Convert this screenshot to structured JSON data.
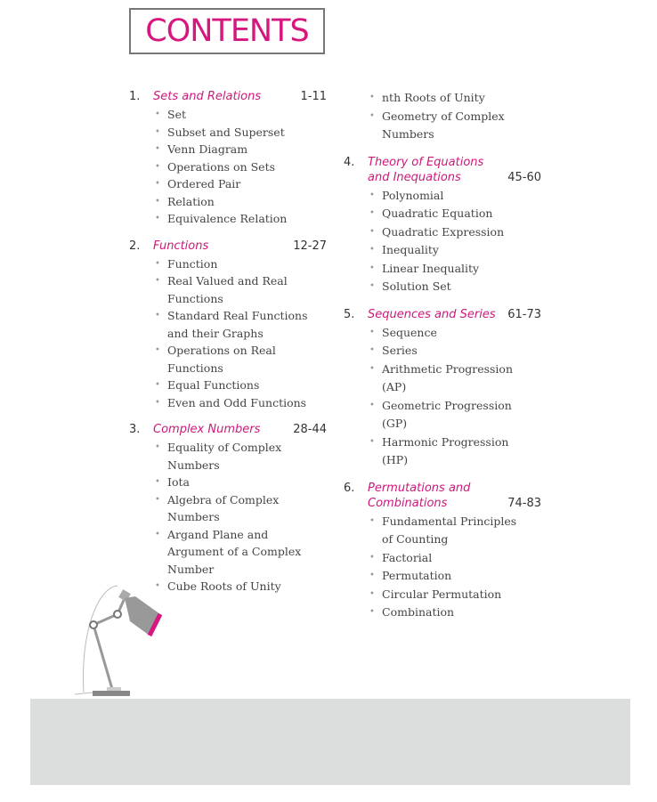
{
  "title": "CONTENTS",
  "accent_color": "#d6177f",
  "sections": [
    {
      "num": "1.",
      "title": "Sets and Relations",
      "pages": "1-11",
      "items": [
        "Set",
        "Subset and Superset",
        "Venn Diagram",
        "Operations on Sets",
        "Ordered Pair",
        "Relation",
        "Equivalence Relation"
      ]
    },
    {
      "num": "2.",
      "title": "Functions",
      "pages": "12-27",
      "items": [
        "Function",
        "Real Valued and Real Functions",
        "Standard Real Functions and their Graphs",
        "Operations on Real Functions",
        "Equal Functions",
        "Even and Odd Functions"
      ]
    },
    {
      "num": "3.",
      "title": "Complex Numbers",
      "pages": "28-44",
      "items": [
        "Equality of Complex Numbers",
        "Iota",
        "Algebra of Complex Numbers",
        "Argand Plane and Argument of a Complex Number",
        "Cube Roots of Unity"
      ]
    },
    {
      "num": "",
      "title": "",
      "pages": "",
      "items": [
        "nth Roots of Unity",
        "Geometry of Complex Numbers"
      ]
    },
    {
      "num": "4.",
      "title": "Theory of Equations and Inequations",
      "pages": "45-60",
      "items": [
        "Polynomial",
        "Quadratic Equation",
        "Quadratic Expression",
        "Inequality",
        "Linear Inequality",
        "Solution Set"
      ]
    },
    {
      "num": "5.",
      "title": "Sequences and Series",
      "pages": "61-73",
      "items": [
        "Sequence",
        "Series",
        "Arithmetic Progression (AP)",
        "Geometric Progression (GP)",
        "Harmonic Progression (HP)"
      ]
    },
    {
      "num": "6.",
      "title": "Permutations and Combinations",
      "pages": "74-83",
      "items": [
        "Fundamental Principles of Counting",
        "Factorial",
        "Permutation",
        "Circular Permutation",
        "Combination"
      ]
    }
  ]
}
